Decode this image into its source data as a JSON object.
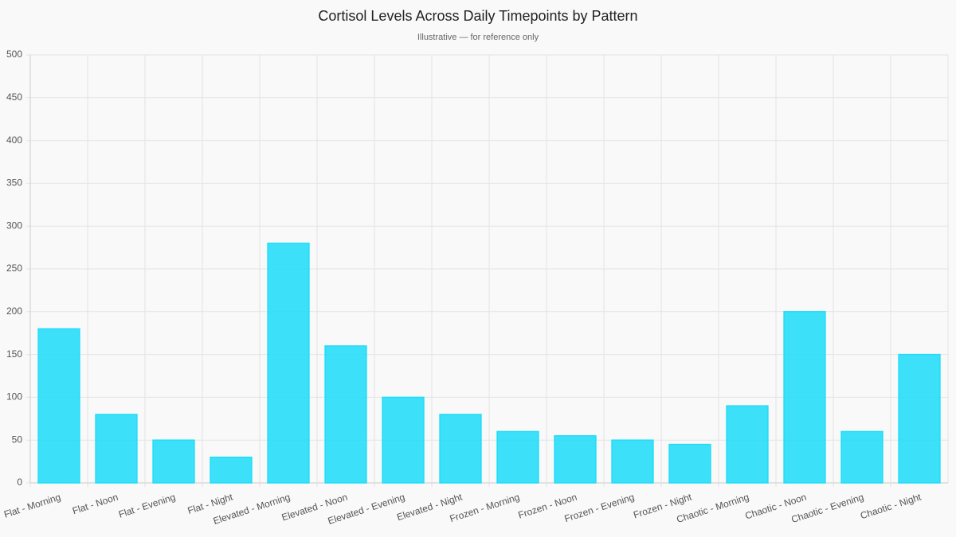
{
  "chart_data": {
    "type": "bar",
    "title": "Cortisol Levels Across Daily Timepoints by Pattern",
    "subtitle": "Illustrative — for reference only",
    "categories": [
      "Flat - Morning",
      "Flat - Noon",
      "Flat - Evening",
      "Flat - Night",
      "Elevated - Morning",
      "Elevated - Noon",
      "Elevated - Evening",
      "Elevated - Night",
      "Frozen - Morning",
      "Frozen - Noon",
      "Frozen - Evening",
      "Frozen - Night",
      "Chaotic - Morning",
      "Chaotic - Noon",
      "Chaotic - Evening",
      "Chaotic - Night"
    ],
    "values": [
      180,
      80,
      50,
      30,
      280,
      160,
      100,
      80,
      60,
      55,
      50,
      45,
      90,
      200,
      60,
      150
    ],
    "color": "#22dcf8",
    "ylim": [
      0,
      500
    ],
    "yticks": [
      0,
      50,
      100,
      150,
      200,
      250,
      300,
      350,
      400,
      450,
      500
    ],
    "grid": true
  }
}
